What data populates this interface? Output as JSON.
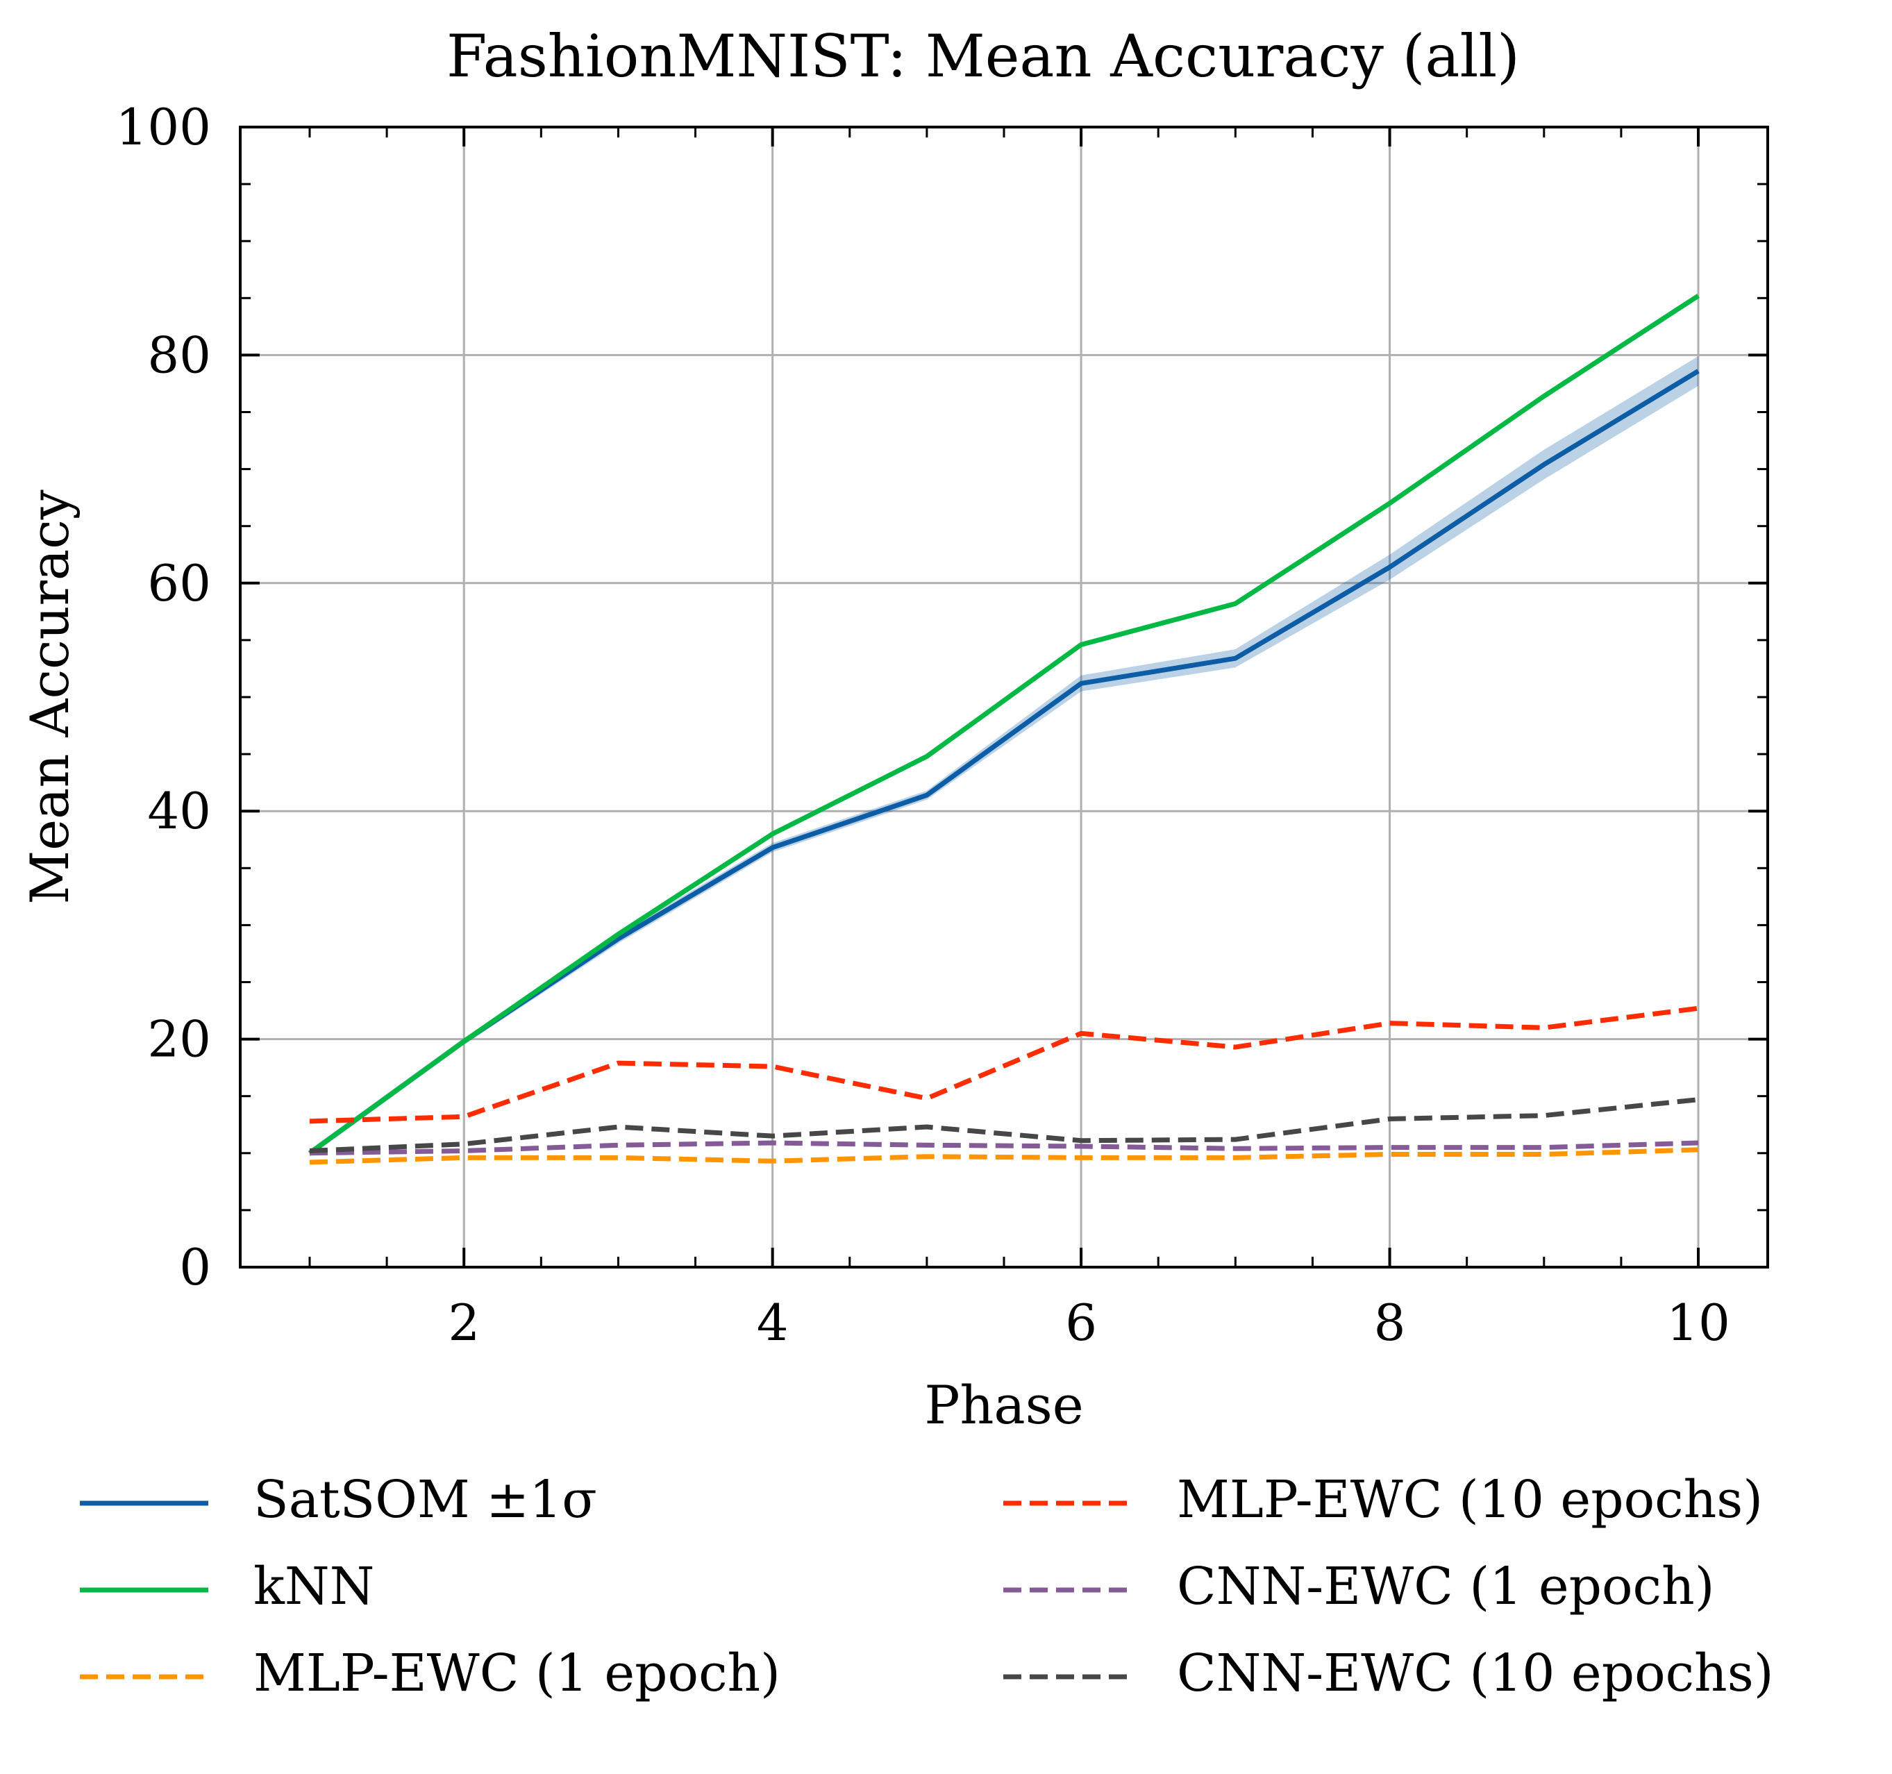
{
  "chart_data": {
    "type": "line",
    "title": "FashionMNIST: Mean Accuracy (all)",
    "xlabel": "Phase",
    "ylabel": "Mean Accuracy",
    "xlim": [
      0.55,
      10.45
    ],
    "ylim": [
      0,
      100
    ],
    "xticks": [
      2,
      4,
      6,
      8,
      10
    ],
    "yticks": [
      0,
      20,
      40,
      60,
      80,
      100
    ],
    "grid": true,
    "legend_position": "bottom, two columns",
    "x": [
      1,
      2,
      3,
      4,
      5,
      6,
      7,
      8,
      9,
      10
    ],
    "series": [
      {
        "name": "SatSOM ±1σ",
        "color": "#0C5DA5",
        "style": "solid",
        "values": [
          10.0,
          19.8,
          28.8,
          36.8,
          41.4,
          51.2,
          53.4,
          61.4,
          70.4,
          78.6
        ],
        "band": [
          0.3,
          0.3,
          0.4,
          0.4,
          0.4,
          0.7,
          0.8,
          1.1,
          1.3,
          1.3
        ]
      },
      {
        "name": "kNN",
        "color": "#00B945",
        "style": "solid",
        "values": [
          10.0,
          19.8,
          29.2,
          38.0,
          44.8,
          54.6,
          58.2,
          67.0,
          76.4,
          85.2
        ]
      },
      {
        "name": "MLP-EWC (1 epoch)",
        "color": "#FF9500",
        "style": "dashed",
        "values": [
          9.2,
          9.6,
          9.6,
          9.3,
          9.7,
          9.6,
          9.6,
          9.9,
          9.9,
          10.3
        ]
      },
      {
        "name": "MLP-EWC (10 epochs)",
        "color": "#FF2C00",
        "style": "dashed",
        "values": [
          12.8,
          13.2,
          17.9,
          17.6,
          14.8,
          20.5,
          19.3,
          21.4,
          21.0,
          22.7
        ]
      },
      {
        "name": "CNN-EWC (1 epoch)",
        "color": "#845B97",
        "style": "dashed",
        "values": [
          10.0,
          10.2,
          10.7,
          10.9,
          10.7,
          10.6,
          10.4,
          10.5,
          10.5,
          10.9
        ]
      },
      {
        "name": "CNN-EWC (10 epochs)",
        "color": "#474747",
        "style": "dashed",
        "values": [
          10.2,
          10.8,
          12.3,
          11.5,
          12.3,
          11.1,
          11.2,
          13.0,
          13.3,
          14.7
        ]
      }
    ]
  }
}
